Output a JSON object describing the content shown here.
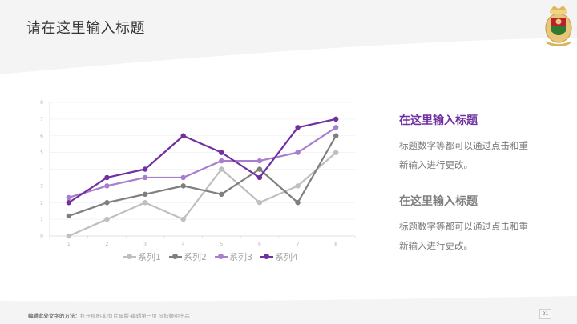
{
  "header": {
    "title": "请在这里输入标题",
    "logo": "crest-emblem-icon"
  },
  "colors": {
    "accent": "#7030a0",
    "series1": "#bfbfbf",
    "series2": "#7f7f7f",
    "series3": "#a77fcc",
    "series4": "#7030a0",
    "header_bg": "#f4f4f4"
  },
  "chart_data": {
    "type": "line",
    "title": "",
    "xlabel": "",
    "ylabel": "",
    "categories": [
      "1",
      "2",
      "3",
      "4",
      "5",
      "6",
      "7",
      "8"
    ],
    "ylim": [
      0,
      8
    ],
    "yticks": [
      "0",
      "1",
      "2",
      "3",
      "4",
      "5",
      "6",
      "7",
      "8"
    ],
    "grid": true,
    "legend_position": "bottom",
    "series": [
      {
        "name": "系列1",
        "values": [
          0,
          1,
          2,
          1,
          4,
          2,
          3,
          5
        ]
      },
      {
        "name": "系列2",
        "values": [
          1.2,
          2,
          2.5,
          3,
          2.5,
          4,
          2,
          6
        ]
      },
      {
        "name": "系列3",
        "values": [
          2.3,
          3,
          3.5,
          3.5,
          4.5,
          4.5,
          5,
          6.5
        ]
      },
      {
        "name": "系列4",
        "values": [
          2,
          3.5,
          4,
          6,
          5,
          3.5,
          6.5,
          7
        ]
      }
    ]
  },
  "legend": [
    {
      "label": "系列1"
    },
    {
      "label": "系列2"
    },
    {
      "label": "系列3"
    },
    {
      "label": "系列4"
    }
  ],
  "side": [
    {
      "title": "在这里输入标题",
      "text_line1": "标题数字等都可以通过点击和重",
      "text_line2": "新输入进行更改。"
    },
    {
      "title": "在这里输入标题",
      "text_line1": "标题数字等都可以通过点击和重",
      "text_line2": "新输入进行更改。"
    }
  ],
  "footer": {
    "bold": "编辑此处文字的方法：",
    "text": "打开视图-幻灯片母版-编辑第一页 @妖娆明出品",
    "page_number": "21"
  }
}
